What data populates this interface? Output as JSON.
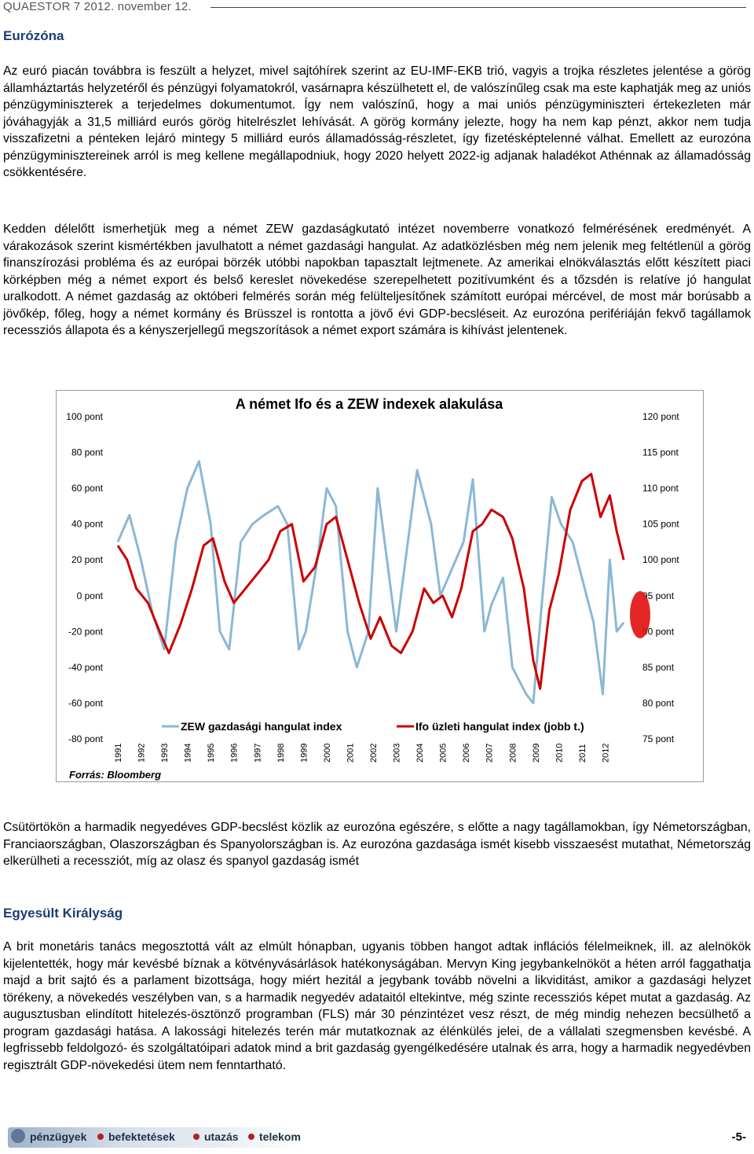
{
  "header": {
    "text": "QUAESTOR 7  2012. november 12."
  },
  "sections": {
    "eurozone": {
      "title": "Eurózóna",
      "p1": "Az euró piacán továbbra is feszült a helyzet, mivel sajtóhírek szerint az EU-IMF-EKB trió, vagyis a trojka részletes jelentése a görög államháztartás helyzetéről és pénzügyi folyamatokról, vasárnapra készülhetett el, de valószínűleg csak ma este kaphatják meg az uniós pénzügyminiszterek a terjedelmes dokumentumot. Így nem valószínű, hogy a mai uniós pénzügyminiszteri értekezleten már jóváhagyják a 31,5 milliárd eurós görög hitelrészlet lehívását. A görög kormány jelezte, hogy ha nem kap pénzt, akkor nem tudja visszafizetni a pénteken lejáró mintegy 5 milliárd eurós államadósság-részletet, így fizetésképtelenné válhat. Emellett az eurozóna pénzügyminisztereinek arról is meg kellene megállapodniuk, hogy 2020 helyett 2022-ig adjanak haladékot Athénnak az államadósság csökkentésére.",
      "p2": "Kedden délelőtt ismerhetjük meg a német ZEW gazdaságkutató intézet novemberre vonatkozó felmérésének eredményét. A várakozások szerint kismértékben javulhatott a német gazdasági hangulat. Az adatközlésben még nem jelenik meg feltétlenül a görög finanszírozási probléma és az európai börzék utóbbi napokban tapasztalt lejtmenete. Az amerikai elnökválasztás előtt készített piaci körképben még a német export és belső kereslet növekedése szerepelhetett pozitívumként és a tőzsdén is relatíve jó hangulat uralkodott. A német gazdaság az októberi felmérés során még felülteljesítőnek számított európai mércével, de most már borúsabb a jövőkép, főleg, hogy a német kormány és Brüsszel is rontotta a jövő évi GDP-becsléseit. Az eurozóna perifériáján fekvő tagállamok recessziós állapota és a kényszerjellegű megszorítások a német export számára is kihívást jelentenek.",
      "p3": "Csütörtökön a harmadik negyedéves GDP-becslést közlik az eurozóna egészére, s előtte a nagy tagállamokban, így Németországban, Franciaországban, Olaszországban és Spanyolországban is. Az eurozóna gazdasága ismét kisebb visszaesést mutathat, Németország elkerülheti a recessziót, míg az olasz és spanyol gazdaság ismét"
    },
    "uk": {
      "title": "Egyesült Királyság",
      "p1": "A brit monetáris tanács megosztottá vált az elmúlt hónapban, ugyanis többen hangot adtak inflációs félelmeiknek, ill. az alelnökök kijelentették, hogy már kevésbé bíznak a kötvényvásárlások hatékonyságában. Mervyn King jegybankelnököt a héten arról faggathatja majd a brit sajtó és a parlament bizottsága, hogy miért hezitál a jegybank tovább növelni a likviditást, amikor a gazdasági helyzet törékeny, a növekedés veszélyben van, s a harmadik negyedév adataitól eltekintve, még szinte recessziós képet mutat a gazdaság. Az augusztusban elindított hitelezés-ösztönző programban (FLS) már 30 pénzintézet vesz részt, de még mindig nehezen becsülhető a program gazdasági hatása. A lakossági hitelezés terén már mutatkoznak az élénkülés jelei, de a vállalati szegmensben kevésbé. A legfrissebb feldolgozó- és szolgáltatóipari adatok mind a brit gazdaság gyengélkedésére utalnak és arra, hogy a harmadik negyedévben regisztrált GDP-növekedési ütem nem fenntartható."
    }
  },
  "chart_data": {
    "type": "line",
    "title": "A német Ifo és a ZEW indexek alakulása",
    "source": "Forrás: Bloomberg",
    "left_axis": {
      "ylim": [
        -80,
        100
      ],
      "ticks": [
        100,
        80,
        60,
        40,
        20,
        0,
        -20,
        -40,
        -60,
        -80
      ],
      "labels": [
        "100 pont",
        "80 pont",
        "60 pont",
        "40 pont",
        "20 pont",
        "0 pont",
        "-20 pont",
        "-40 pont",
        "-60 pont",
        "-80 pont"
      ]
    },
    "right_axis": {
      "ylim": [
        75,
        120
      ],
      "ticks": [
        120,
        115,
        110,
        105,
        100,
        95,
        90,
        85,
        80,
        75
      ],
      "labels": [
        "120 pont",
        "115 pont",
        "110 pont",
        "105 pont",
        "100 pont",
        "95 pont",
        "90 pont",
        "85 pont",
        "80 pont",
        "75 pont"
      ]
    },
    "x_labels": [
      "1991",
      "1992",
      "1993",
      "1994",
      "1995",
      "1996",
      "1997",
      "1998",
      "1999",
      "2000",
      "2001",
      "2002",
      "2003",
      "2004",
      "2005",
      "2006",
      "2007",
      "2008",
      "2009",
      "2010",
      "2011",
      "2012"
    ],
    "series": [
      {
        "name": "ZEW gazdasági hangulat index",
        "axis": "left",
        "color": "#8ab8d6",
        "points": [
          [
            1991.0,
            30
          ],
          [
            1991.5,
            45
          ],
          [
            1992.0,
            20
          ],
          [
            1992.5,
            -10
          ],
          [
            1993.0,
            -30
          ],
          [
            1993.5,
            30
          ],
          [
            1994.0,
            60
          ],
          [
            1994.5,
            75
          ],
          [
            1995.0,
            40
          ],
          [
            1995.4,
            -20
          ],
          [
            1995.8,
            -30
          ],
          [
            1996.3,
            30
          ],
          [
            1996.8,
            40
          ],
          [
            1997.3,
            45
          ],
          [
            1997.9,
            50
          ],
          [
            1998.3,
            40
          ],
          [
            1998.8,
            -30
          ],
          [
            1999.1,
            -20
          ],
          [
            1999.6,
            20
          ],
          [
            2000.0,
            60
          ],
          [
            2000.4,
            50
          ],
          [
            2000.9,
            -20
          ],
          [
            2001.3,
            -40
          ],
          [
            2001.8,
            -20
          ],
          [
            2002.2,
            60
          ],
          [
            2002.6,
            20
          ],
          [
            2003.0,
            -20
          ],
          [
            2003.5,
            30
          ],
          [
            2003.9,
            70
          ],
          [
            2004.5,
            40
          ],
          [
            2004.9,
            0
          ],
          [
            2005.4,
            15
          ],
          [
            2005.9,
            30
          ],
          [
            2006.3,
            65
          ],
          [
            2006.8,
            -20
          ],
          [
            2007.1,
            -5
          ],
          [
            2007.6,
            10
          ],
          [
            2008.0,
            -40
          ],
          [
            2008.6,
            -55
          ],
          [
            2008.9,
            -60
          ],
          [
            2009.3,
            0
          ],
          [
            2009.7,
            55
          ],
          [
            2010.1,
            40
          ],
          [
            2010.6,
            30
          ],
          [
            2011.0,
            10
          ],
          [
            2011.5,
            -15
          ],
          [
            2011.9,
            -55
          ],
          [
            2012.2,
            20
          ],
          [
            2012.5,
            -20
          ],
          [
            2012.8,
            -15
          ]
        ]
      },
      {
        "name": "Ifo üzleti hangulat index (jobb t.)",
        "axis": "right",
        "color": "#cc0000",
        "points": [
          [
            1991.0,
            102
          ],
          [
            1991.4,
            100
          ],
          [
            1991.8,
            96
          ],
          [
            1992.3,
            94
          ],
          [
            1992.8,
            90
          ],
          [
            1993.2,
            87
          ],
          [
            1993.7,
            91
          ],
          [
            1994.2,
            96
          ],
          [
            1994.7,
            102
          ],
          [
            1995.1,
            103
          ],
          [
            1995.6,
            97
          ],
          [
            1996.0,
            94
          ],
          [
            1996.5,
            96
          ],
          [
            1997.0,
            98
          ],
          [
            1997.5,
            100
          ],
          [
            1998.0,
            104
          ],
          [
            1998.5,
            105
          ],
          [
            1999.0,
            97
          ],
          [
            1999.5,
            99
          ],
          [
            2000.0,
            105
          ],
          [
            2000.4,
            106
          ],
          [
            2000.9,
            100
          ],
          [
            2001.4,
            94
          ],
          [
            2001.9,
            89
          ],
          [
            2002.3,
            92
          ],
          [
            2002.8,
            88
          ],
          [
            2003.2,
            87
          ],
          [
            2003.7,
            90
          ],
          [
            2004.2,
            96
          ],
          [
            2004.6,
            94
          ],
          [
            2005.0,
            95
          ],
          [
            2005.4,
            92
          ],
          [
            2005.8,
            96
          ],
          [
            2006.3,
            104
          ],
          [
            2006.7,
            105
          ],
          [
            2007.1,
            107
          ],
          [
            2007.6,
            106
          ],
          [
            2008.0,
            103
          ],
          [
            2008.5,
            96
          ],
          [
            2008.9,
            86
          ],
          [
            2009.2,
            82
          ],
          [
            2009.6,
            93
          ],
          [
            2010.0,
            98
          ],
          [
            2010.5,
            107
          ],
          [
            2011.0,
            111
          ],
          [
            2011.4,
            112
          ],
          [
            2011.8,
            106
          ],
          [
            2012.2,
            109
          ],
          [
            2012.5,
            104
          ],
          [
            2012.8,
            100
          ]
        ]
      }
    ]
  },
  "footer": {
    "items": [
      "pénzügyek",
      "befektetések",
      "utazás",
      "telekom"
    ],
    "page_number": "-5-"
  }
}
